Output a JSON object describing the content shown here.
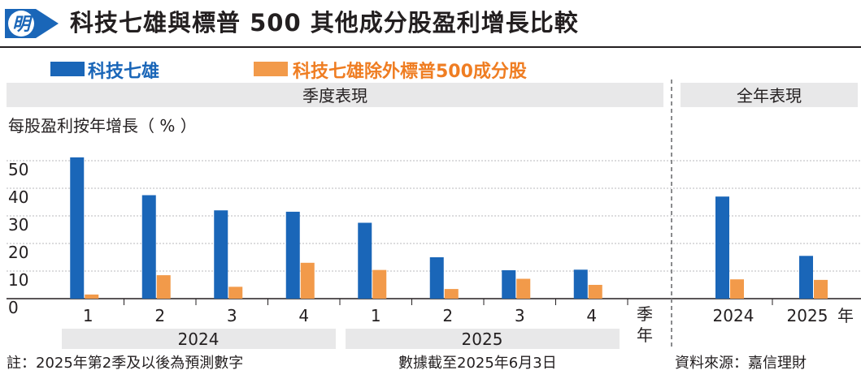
{
  "title": "科技七雄與標普 500 其他成分股盈利增長比較",
  "colors": {
    "tech7": "#1a66b8",
    "others": "#f29a4a",
    "panel_bg": "#e8e8e9",
    "grid": "#b9babc"
  },
  "legend": [
    {
      "label": "科技七雄",
      "color": "#1a66b8",
      "text_color": "#1a66b8"
    },
    {
      "label": "科技七雄除外標普500成分股",
      "color": "#f29a4a",
      "text_color": "#ef7d22"
    }
  ],
  "panels": {
    "quarterly": "季度表現",
    "annual": "全年表現"
  },
  "chart_data": {
    "type": "bar",
    "ylabel": "每股盈利按年增長（ %  ）",
    "ylim": [
      0,
      50
    ],
    "yticks": [
      0,
      10,
      20,
      30,
      40,
      50
    ],
    "series": [
      {
        "name": "科技七雄",
        "color": "#1a66b8"
      },
      {
        "name": "科技七雄除外標普500成分股",
        "color": "#f29a4a"
      }
    ],
    "quarterly": {
      "categories": [
        "1",
        "2",
        "3",
        "4",
        "1",
        "2",
        "3",
        "4"
      ],
      "values": [
        [
          51.2,
          1.5
        ],
        [
          37.5,
          8.5
        ],
        [
          32,
          4.3
        ],
        [
          31.5,
          13
        ],
        [
          27.5,
          10.4
        ],
        [
          15,
          3.5
        ],
        [
          10.3,
          7.2
        ],
        [
          10.5,
          5
        ]
      ],
      "years": [
        "2024",
        "2025"
      ],
      "axis_unit": [
        "季",
        "年"
      ]
    },
    "annual": {
      "categories": [
        "2024",
        "2025"
      ],
      "values": [
        [
          37,
          7
        ],
        [
          15.5,
          6.8
        ]
      ],
      "axis_unit": "年"
    }
  },
  "footer": {
    "note": "註：2025年第2季及以後為預測數字",
    "as_of": "數據截至2025年6月3日",
    "source": "資料來源：嘉信理財"
  }
}
